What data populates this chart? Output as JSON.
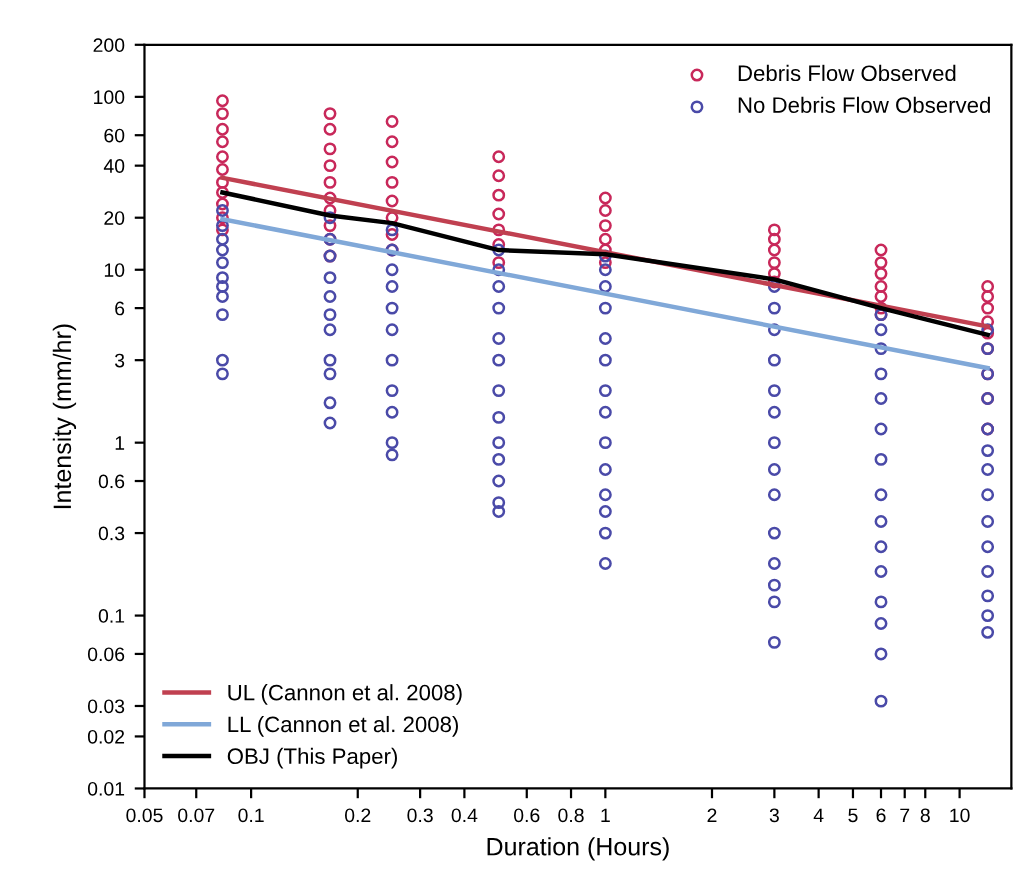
{
  "chart_data": {
    "type": "scatter",
    "xlabel": "Duration (Hours)",
    "ylabel": "Intensity (mm/hr)",
    "log": "xy",
    "xlim": [
      0.05,
      14
    ],
    "ylim": [
      0.01,
      200
    ],
    "xticks": [
      0.05,
      0.07,
      0.1,
      0.2,
      0.3,
      0.4,
      0.6,
      0.8,
      1,
      2,
      3,
      4,
      5,
      6,
      7,
      8,
      10
    ],
    "yticks": [
      0.01,
      0.02,
      0.03,
      0.06,
      0.1,
      0.3,
      0.6,
      1,
      3,
      6,
      10,
      20,
      40,
      60,
      100,
      200
    ],
    "grid": false,
    "legend": "top right",
    "series": [
      {
        "name": "Debris Flow Observed",
        "color": "#c8285a",
        "marker": "circle",
        "x": [
          0.083,
          0.083,
          0.083,
          0.083,
          0.083,
          0.083,
          0.083,
          0.083,
          0.083,
          0.083,
          0.083,
          0.167,
          0.167,
          0.167,
          0.167,
          0.167,
          0.167,
          0.167,
          0.167,
          0.167,
          0.167,
          0.25,
          0.25,
          0.25,
          0.25,
          0.25,
          0.25,
          0.25,
          0.25,
          0.5,
          0.5,
          0.5,
          0.5,
          0.5,
          0.5,
          0.5,
          1,
          1,
          1,
          1,
          1,
          1,
          3,
          3,
          3,
          3,
          3,
          3,
          6,
          6,
          6,
          6,
          6,
          6,
          6,
          12,
          12,
          12,
          12,
          12,
          12,
          12,
          12,
          12
        ],
        "values": [
          95,
          80,
          65,
          55,
          45,
          38,
          32,
          28,
          24,
          20,
          17,
          80,
          65,
          50,
          40,
          32,
          26,
          22,
          18,
          15,
          12,
          72,
          55,
          42,
          32,
          25,
          20,
          16,
          13,
          45,
          35,
          27,
          21,
          17,
          14,
          11,
          26,
          22,
          18,
          15,
          13,
          11,
          17,
          15,
          13,
          11,
          9.5,
          8.5,
          13,
          11,
          9.5,
          8,
          7,
          6,
          5.5,
          8,
          7,
          6,
          5,
          4.3,
          3.5,
          2.5,
          1.8,
          1.2
        ]
      },
      {
        "name": "No Debris Flow Observed",
        "color": "#4a4aa8",
        "marker": "circle",
        "x": [
          0.083,
          0.083,
          0.083,
          0.083,
          0.083,
          0.083,
          0.083,
          0.083,
          0.083,
          0.083,
          0.083,
          0.167,
          0.167,
          0.167,
          0.167,
          0.167,
          0.167,
          0.167,
          0.167,
          0.167,
          0.167,
          0.167,
          0.25,
          0.25,
          0.25,
          0.25,
          0.25,
          0.25,
          0.25,
          0.25,
          0.25,
          0.25,
          0.25,
          0.5,
          0.5,
          0.5,
          0.5,
          0.5,
          0.5,
          0.5,
          0.5,
          0.5,
          0.5,
          0.5,
          0.5,
          0.5,
          1,
          1,
          1,
          1,
          1,
          1,
          1,
          1,
          1,
          1,
          1,
          1,
          1,
          1,
          3,
          3,
          3,
          3,
          3,
          3,
          3,
          3,
          3,
          3,
          3,
          3,
          3,
          3,
          6,
          6,
          6,
          6,
          6,
          6,
          6,
          6,
          6,
          6,
          6,
          6,
          6,
          6,
          6,
          12,
          12,
          12,
          12,
          12,
          12,
          12,
          12,
          12,
          12,
          12,
          12,
          12,
          12
        ],
        "values": [
          22,
          18,
          15,
          13,
          11,
          9,
          8,
          7,
          5.5,
          3,
          2.5,
          20,
          15,
          12,
          9,
          7,
          5.5,
          4.5,
          3,
          2.5,
          1.7,
          1.3,
          17,
          13,
          10,
          8,
          6,
          4.5,
          3,
          2,
          1.5,
          1,
          0.85,
          13,
          10,
          8,
          6,
          4,
          3,
          2,
          1.4,
          1,
          0.8,
          0.6,
          0.45,
          0.4,
          12,
          10,
          8,
          6,
          4,
          3,
          2,
          1.5,
          1,
          0.7,
          0.5,
          0.4,
          0.3,
          0.2,
          8,
          6,
          4.5,
          3,
          2,
          1.5,
          1,
          0.7,
          0.5,
          0.3,
          0.2,
          0.15,
          0.12,
          0.07,
          5.5,
          4.5,
          3.5,
          2.5,
          1.8,
          1.2,
          0.8,
          0.5,
          0.35,
          0.25,
          0.18,
          0.12,
          0.09,
          0.06,
          0.032,
          4.5,
          3.5,
          2.5,
          1.8,
          1.2,
          0.9,
          0.7,
          0.5,
          0.35,
          0.25,
          0.18,
          0.13,
          0.1,
          0.08
        ]
      },
      {
        "type": "line",
        "name": "UL (Cannon et al. 2008)",
        "color": "#c04050",
        "marker": "none",
        "x": [
          0.083,
          12
        ],
        "values": [
          34,
          4.7
        ]
      },
      {
        "type": "line",
        "name": "LL (Cannon et al. 2008)",
        "color": "#80a8d8",
        "marker": "none",
        "x": [
          0.083,
          12
        ],
        "values": [
          19.6,
          2.7
        ]
      },
      {
        "type": "line",
        "name": "OBJ (This Paper)",
        "color": "#000000",
        "marker": "none",
        "x": [
          0.083,
          0.167,
          0.25,
          0.5,
          1,
          3,
          6,
          12
        ],
        "values": [
          28,
          20.6,
          18.6,
          13,
          12.3,
          8.8,
          6,
          4.2
        ]
      }
    ]
  }
}
